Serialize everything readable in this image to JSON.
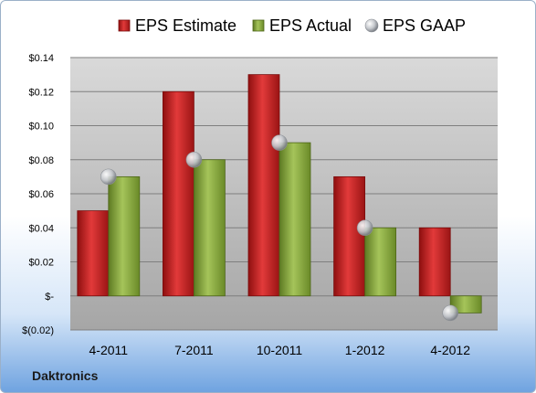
{
  "company": "Daktronics",
  "chart_data": {
    "type": "bar",
    "categories": [
      "4-2011",
      "7-2011",
      "10-2011",
      "1-2012",
      "4-2012"
    ],
    "series": [
      {
        "name": "EPS Estimate",
        "kind": "bar",
        "color": "#d42a2a",
        "values": [
          0.05,
          0.12,
          0.13,
          0.07,
          0.04
        ]
      },
      {
        "name": "EPS Actual",
        "kind": "bar",
        "color": "#8fb044",
        "values": [
          0.07,
          0.08,
          0.09,
          0.04,
          -0.01
        ]
      },
      {
        "name": "EPS GAAP",
        "kind": "marker",
        "color": "#b8bcc2",
        "values": [
          0.07,
          0.08,
          0.09,
          0.04,
          -0.01
        ]
      }
    ],
    "ylim": [
      -0.02,
      0.14
    ],
    "yticks": [
      -0.02,
      0,
      0.02,
      0.04,
      0.06,
      0.08,
      0.1,
      0.12,
      0.14
    ],
    "ytick_labels": [
      "$(0.02)",
      "$-",
      "$0.02",
      "$0.04",
      "$0.06",
      "$0.08",
      "$0.10",
      "$0.12",
      "$0.14"
    ],
    "legend_position": "top",
    "grid": true
  }
}
